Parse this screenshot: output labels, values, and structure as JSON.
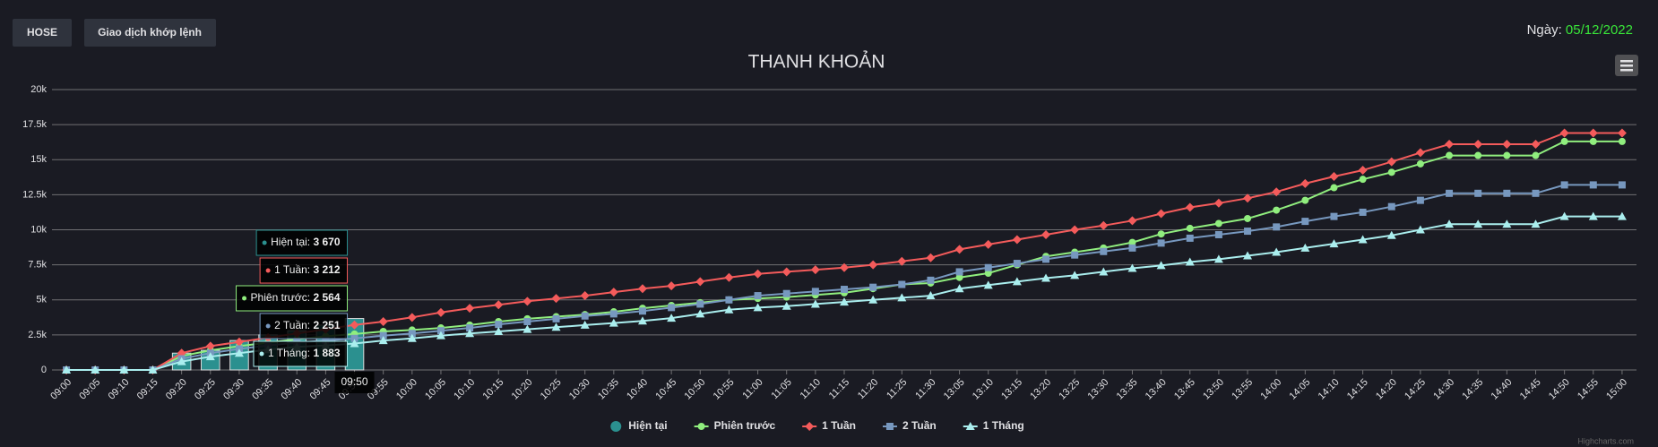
{
  "header": {
    "buttons": [
      "HOSE",
      "Giao dịch khớp lệnh"
    ],
    "date_label": "Ngày:",
    "date": "05/12/2022"
  },
  "credits": "Highcharts.com",
  "chart_data": {
    "type": "line",
    "title": "THANH KHOẢN",
    "categories": [
      "09:00",
      "09:05",
      "09:10",
      "09:15",
      "09:20",
      "09:25",
      "09:30",
      "09:35",
      "09:40",
      "09:45",
      "09:50",
      "09:55",
      "10:00",
      "10:05",
      "10:10",
      "10:15",
      "10:20",
      "10:25",
      "10:30",
      "10:35",
      "10:40",
      "10:45",
      "10:50",
      "10:55",
      "11:00",
      "11:05",
      "11:10",
      "11:15",
      "11:20",
      "11:25",
      "11:30",
      "13:05",
      "13:10",
      "13:15",
      "13:20",
      "13:25",
      "13:30",
      "13:35",
      "13:40",
      "13:45",
      "13:50",
      "13:55",
      "14:00",
      "14:05",
      "14:10",
      "14:15",
      "14:20",
      "14:25",
      "14:30",
      "14:35",
      "14:40",
      "14:45",
      "14:50",
      "14:55",
      "15:00"
    ],
    "ylim": [
      0,
      20000
    ],
    "yticks": [
      0,
      {
        "value": 2500,
        "label": "2.5k"
      },
      {
        "value": 5000,
        "label": "5k"
      },
      {
        "value": 7500,
        "label": "7.5k"
      },
      {
        "value": 10000,
        "label": "10k"
      },
      {
        "value": 12500,
        "label": "12.5k"
      },
      {
        "value": 15000,
        "label": "15k"
      },
      {
        "value": 17500,
        "label": "17.5k"
      },
      {
        "value": 20000,
        "label": "20k"
      }
    ],
    "grid": true,
    "series": [
      {
        "name": "Hiện tại",
        "type": "bar",
        "color": "#2b908f",
        "marker": "circle",
        "values": [
          0,
          0,
          0,
          0,
          1200,
          1400,
          2100,
          2500,
          2800,
          3200,
          3670,
          null,
          null,
          null,
          null,
          null,
          null,
          null,
          null,
          null,
          null,
          null,
          null,
          null,
          null,
          null,
          null,
          null,
          null,
          null,
          null,
          null,
          null,
          null,
          null,
          null,
          null,
          null,
          null,
          null,
          null,
          null,
          null,
          null,
          null,
          null,
          null,
          null,
          null,
          null,
          null,
          null,
          null,
          null,
          null
        ]
      },
      {
        "name": "Phiên trước",
        "color": "#90ee7e",
        "marker": "circle",
        "values": [
          0,
          0,
          0,
          0,
          1000,
          1400,
          1700,
          1950,
          2200,
          2400,
          2564,
          2750,
          2850,
          3000,
          3200,
          3450,
          3650,
          3800,
          3950,
          4150,
          4400,
          4600,
          4800,
          5000,
          5100,
          5200,
          5350,
          5500,
          5800,
          6100,
          6200,
          6600,
          6900,
          7500,
          8100,
          8400,
          8700,
          9100,
          9700,
          10100,
          10450,
          10800,
          11400,
          12100,
          13000,
          13600,
          14100,
          14700,
          15300,
          15300,
          15300,
          15300,
          16300,
          16300,
          16300
        ]
      },
      {
        "name": "1 Tuần",
        "color": "#f45b5b",
        "marker": "diamond",
        "values": [
          0,
          0,
          0,
          0,
          1200,
          1700,
          2000,
          2300,
          2600,
          2900,
          3212,
          3450,
          3750,
          4100,
          4400,
          4650,
          4900,
          5100,
          5300,
          5550,
          5800,
          6000,
          6300,
          6600,
          6850,
          7000,
          7150,
          7300,
          7500,
          7750,
          8000,
          8600,
          8950,
          9300,
          9650,
          10000,
          10300,
          10650,
          11150,
          11600,
          11900,
          12250,
          12700,
          13300,
          13800,
          14250,
          14850,
          15500,
          16100,
          16100,
          16100,
          16100,
          16900,
          16900,
          16900
        ]
      },
      {
        "name": "2 Tuần",
        "color": "#7798bf",
        "marker": "square",
        "values": [
          0,
          0,
          0,
          0,
          800,
          1200,
          1500,
          1750,
          1950,
          2100,
          2251,
          2450,
          2600,
          2800,
          3000,
          3250,
          3450,
          3650,
          3850,
          4000,
          4200,
          4450,
          4700,
          5000,
          5300,
          5450,
          5600,
          5750,
          5900,
          6100,
          6400,
          7000,
          7300,
          7600,
          7900,
          8200,
          8450,
          8700,
          9050,
          9400,
          9650,
          9900,
          10200,
          10600,
          10950,
          11250,
          11650,
          12100,
          12600,
          12600,
          12600,
          12600,
          13200,
          13200,
          13200
        ]
      },
      {
        "name": "1 Tháng",
        "color": "#aaeeee",
        "marker": "triangle",
        "values": [
          0,
          0,
          0,
          0,
          600,
          950,
          1200,
          1450,
          1650,
          1750,
          1883,
          2100,
          2250,
          2450,
          2600,
          2750,
          2900,
          3050,
          3200,
          3350,
          3500,
          3700,
          4000,
          4300,
          4450,
          4550,
          4700,
          4850,
          5000,
          5150,
          5300,
          5800,
          6050,
          6300,
          6550,
          6750,
          7000,
          7250,
          7450,
          7700,
          7900,
          8150,
          8400,
          8700,
          9000,
          9300,
          9600,
          10000,
          10400,
          10400,
          10400,
          10400,
          10950,
          10950,
          10950
        ]
      }
    ],
    "tooltip": {
      "category": "09:50",
      "items": [
        {
          "text": "Hiện tại:",
          "value": 3670,
          "label": "3 670"
        },
        {
          "text": "1 Tuần:",
          "value": 3212,
          "label": "3 212"
        },
        {
          "text": "Phiên trước:",
          "value": 2564,
          "label": "2 564"
        },
        {
          "text": "2 Tuần:",
          "value": 2251,
          "label": "2 251"
        },
        {
          "text": "1 Tháng:",
          "value": 1883,
          "label": "1 883"
        }
      ]
    }
  }
}
